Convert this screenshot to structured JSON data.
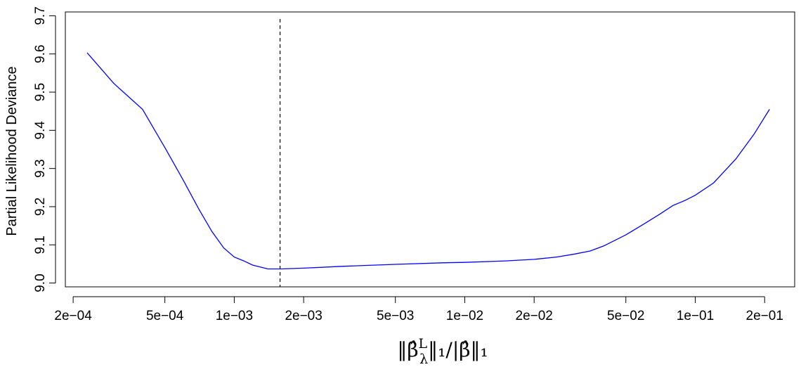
{
  "chart_data": {
    "type": "line",
    "title": "",
    "ylabel": "Partial Likelihood Deviance",
    "xlabel_parts": {
      "open": "‖",
      "beta_hat": "β̂",
      "sup": "L",
      "sub": "λ",
      "mid": "‖₁/|",
      "beta_hat2": "β̂",
      "close": "‖₁"
    },
    "x_scale": "log",
    "xlim": [
      0.000185,
      0.27
    ],
    "ylim": [
      8.99,
      9.71
    ],
    "x_ticks": [
      0.0002,
      0.0005,
      0.001,
      0.002,
      0.005,
      0.01,
      0.02,
      0.05,
      0.1,
      0.2
    ],
    "x_tick_labels": [
      "2e−04",
      "5e−04",
      "1e−03",
      "2e−03",
      "5e−03",
      "1e−02",
      "2e−02",
      "5e−02",
      "1e−01",
      "2e−01"
    ],
    "y_ticks": [
      9.0,
      9.1,
      9.2,
      9.3,
      9.4,
      9.5,
      9.6,
      9.7
    ],
    "y_tick_labels": [
      "9.0",
      "9.1",
      "9.2",
      "9.3",
      "9.4",
      "9.5",
      "9.6",
      "9.7"
    ],
    "grid": false,
    "series": [
      {
        "color": "#0000ff",
        "x": [
          0.00023,
          0.0003,
          0.0004,
          0.0005,
          0.0006,
          0.0007,
          0.0008,
          0.0009,
          0.001,
          0.0011,
          0.0012,
          0.0014,
          0.0016,
          0.002,
          0.003,
          0.005,
          0.008,
          0.01,
          0.015,
          0.02,
          0.025,
          0.03,
          0.035,
          0.04,
          0.05,
          0.06,
          0.07,
          0.08,
          0.09,
          0.1,
          0.12,
          0.15,
          0.18,
          0.21
        ],
        "y": [
          9.603,
          9.523,
          9.455,
          9.355,
          9.27,
          9.195,
          9.135,
          9.092,
          9.068,
          9.058,
          9.047,
          9.037,
          9.037,
          9.039,
          9.044,
          9.049,
          9.053,
          9.054,
          9.058,
          9.062,
          9.068,
          9.076,
          9.084,
          9.097,
          9.126,
          9.155,
          9.18,
          9.203,
          9.216,
          9.23,
          9.262,
          9.325,
          9.39,
          9.455
        ]
      }
    ],
    "vline": {
      "x": 0.00158,
      "style": "dashed",
      "color": "#000000"
    }
  }
}
